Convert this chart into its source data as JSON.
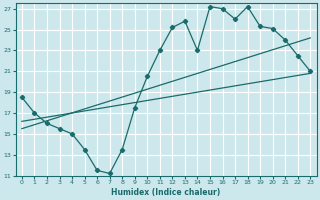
{
  "xlabel": "Humidex (Indice chaleur)",
  "bg_color": "#cde8ec",
  "grid_color": "#ffffff",
  "line_color": "#1a6b6b",
  "xlim": [
    -0.5,
    23.5
  ],
  "ylim": [
    11,
    27.5
  ],
  "xticks": [
    0,
    1,
    2,
    3,
    4,
    5,
    6,
    7,
    8,
    9,
    10,
    11,
    12,
    13,
    14,
    15,
    16,
    17,
    18,
    19,
    20,
    21,
    22,
    23
  ],
  "yticks": [
    11,
    13,
    15,
    17,
    19,
    21,
    23,
    25,
    27
  ],
  "line1_x": [
    0,
    1,
    2,
    3,
    4,
    5,
    6,
    7,
    8,
    9,
    10,
    11,
    12,
    13,
    14,
    15,
    16,
    17,
    18,
    19,
    20,
    21,
    22,
    23
  ],
  "line1_y": [
    18.5,
    17.0,
    16.0,
    15.5,
    15.0,
    13.5,
    11.5,
    11.2,
    13.5,
    17.5,
    20.5,
    23.0,
    25.2,
    25.8,
    23.0,
    27.2,
    27.0,
    26.0,
    27.2,
    25.3,
    25.1,
    24.0,
    22.5,
    21.0
  ],
  "line2_x": [
    0,
    23
  ],
  "line2_y": [
    16.2,
    20.8
  ],
  "line3_x": [
    0,
    23
  ],
  "line3_y": [
    15.5,
    24.2
  ]
}
